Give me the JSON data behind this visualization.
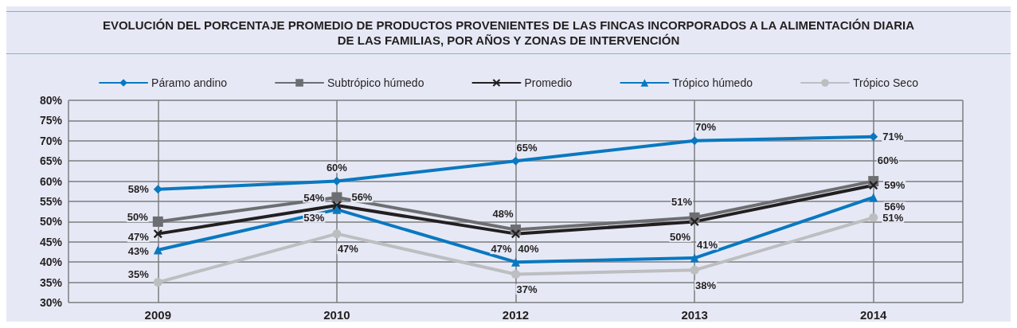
{
  "chart_data": {
    "type": "line",
    "title": "EVOLUCIÓN DEL PORCENTAJE PROMEDIO DE PRODUCTOS PROVENIENTES DE LAS FINCAS INCORPORADOS A LA ALIMENTACIÓN DIARIA\nDE LAS FAMILIAS, POR AÑOS Y ZONAS DE INTERVENCIÓN",
    "categories": [
      "2009",
      "2010",
      "2012",
      "2013",
      "2014"
    ],
    "series": [
      {
        "name": "Páramo andino",
        "color": "#0a78c0",
        "marker": "diamond",
        "values": [
          58,
          60,
          65,
          70,
          71
        ],
        "value_labels": [
          "58%",
          "60%",
          "65%",
          "70%",
          "71%"
        ]
      },
      {
        "name": "Subtrópico húmedo",
        "color": "#6d6e71",
        "marker": "square",
        "values": [
          50,
          56,
          48,
          51,
          60
        ],
        "value_labels": [
          "50%",
          "56%",
          "48%",
          "51%",
          "60%"
        ]
      },
      {
        "name": "Promedio",
        "color": "#231f20",
        "marker": "cross",
        "values": [
          47,
          54,
          47,
          50,
          59
        ],
        "value_labels": [
          "47%",
          "54%",
          "47%",
          "50%",
          "59%"
        ]
      },
      {
        "name": "Trópico húmedo",
        "color": "#0a78c0",
        "marker": "triangle",
        "values": [
          43,
          53,
          40,
          41,
          56
        ],
        "value_labels": [
          "43%",
          "53%",
          "40%",
          "41%",
          "56%"
        ]
      },
      {
        "name": "Trópico Seco",
        "color": "#bdbec0",
        "marker": "circle",
        "values": [
          35,
          47,
          37,
          38,
          51
        ],
        "value_labels": [
          "35%",
          "47%",
          "37%",
          "38%",
          "51%"
        ]
      }
    ],
    "ylim": [
      30,
      80
    ],
    "yticks": [
      {
        "value": 30,
        "label": "30%"
      },
      {
        "value": 35,
        "label": "35%"
      },
      {
        "value": 40,
        "label": "40%"
      },
      {
        "value": 45,
        "label": "45%"
      },
      {
        "value": 50,
        "label": "50%"
      },
      {
        "value": 55,
        "label": "55%"
      },
      {
        "value": 60,
        "label": "60%"
      },
      {
        "value": 65,
        "label": "65%"
      },
      {
        "value": 70,
        "label": "70%"
      },
      {
        "value": 75,
        "label": "75%"
      },
      {
        "value": 80,
        "label": "80%"
      }
    ],
    "grid": true,
    "legend": "top",
    "line_style": "solid"
  }
}
